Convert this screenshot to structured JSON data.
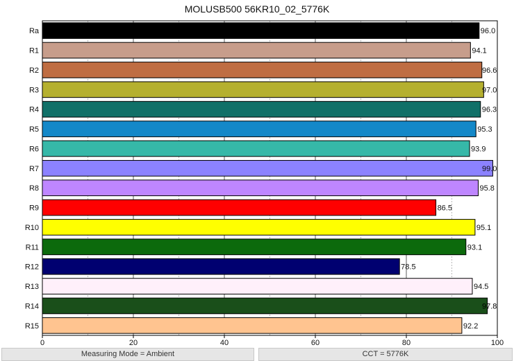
{
  "chart_data": {
    "type": "bar",
    "orientation": "horizontal",
    "title": "MOLUSB500 56KR10_02_5776K",
    "categories": [
      "Ra",
      "R1",
      "R2",
      "R3",
      "R4",
      "R5",
      "R6",
      "R7",
      "R8",
      "R9",
      "R10",
      "R11",
      "R12",
      "R13",
      "R14",
      "R15"
    ],
    "values": [
      96.0,
      94.1,
      96.6,
      97.0,
      96.3,
      95.3,
      93.9,
      99.0,
      95.8,
      86.5,
      95.1,
      93.1,
      78.5,
      94.5,
      97.8,
      92.2
    ],
    "value_labels": [
      "96.0",
      "94.1",
      "96.6",
      "97.0",
      "96.3",
      "95.3",
      "93.9",
      "99.0",
      "95.8",
      "86.5",
      "95.1",
      "93.1",
      "78.5",
      "94.5",
      "97.8",
      "92.2"
    ],
    "colors": [
      "#000000",
      "#c79d8b",
      "#bf6d42",
      "#b5b02f",
      "#107068",
      "#1488c8",
      "#36b8a8",
      "#8c82ff",
      "#be86ff",
      "#ff0000",
      "#ffff00",
      "#0c6a0c",
      "#000070",
      "#fff0fa",
      "#1a4f1a",
      "#ffc490"
    ],
    "xlim": [
      0,
      100
    ],
    "xticks": [
      "0",
      "20",
      "40",
      "60",
      "80",
      "100"
    ],
    "xlabel": "",
    "ylabel": "",
    "grid": true,
    "legend": "none"
  },
  "status": {
    "left": "Measuring Mode = Ambient",
    "right": "CCT = 5776K"
  }
}
